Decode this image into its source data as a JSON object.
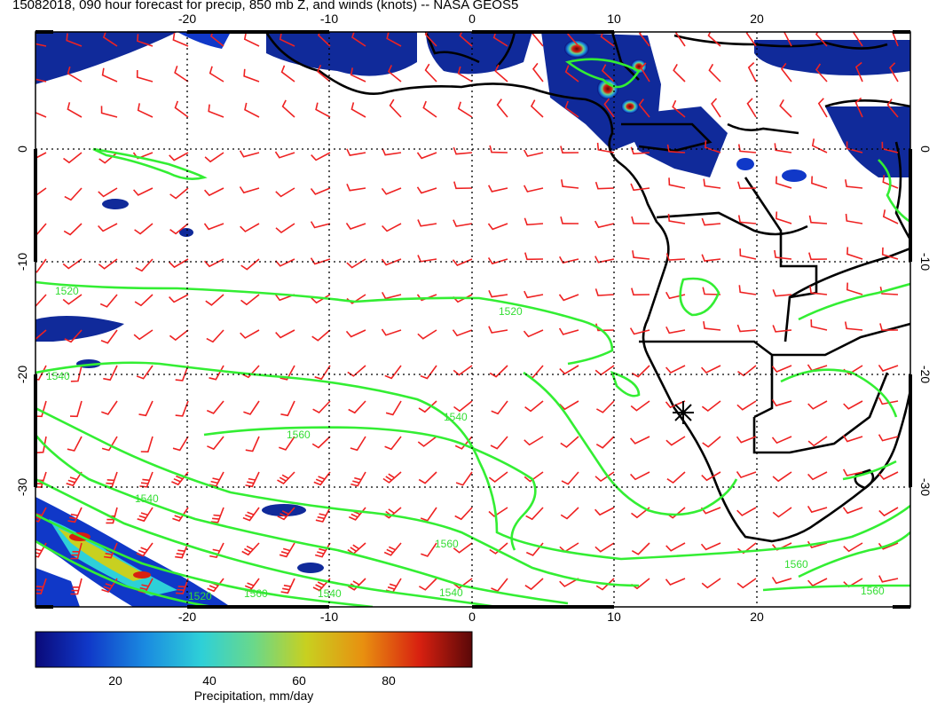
{
  "title": "15082018, 090 hour forecast for precip, 850 mb Z, and winds (knots) -- NASA GEOS5",
  "map": {
    "lon_ticks": [
      "-20",
      "-10",
      "0",
      "10",
      "20"
    ],
    "lat_ticks": [
      "0",
      "-10",
      "-20",
      "-30"
    ],
    "contour_labels": [
      "1520",
      "1520",
      "1540",
      "1540",
      "1560",
      "1540",
      "1560",
      "1560",
      "1560",
      "1560",
      "1540",
      "1520",
      "1540"
    ],
    "colors": {
      "contour": "#33ee33",
      "wind_barb": "#ee2222",
      "coastline": "#000000",
      "grid": "#000000"
    },
    "layers": [
      "precipitation-shading",
      "850mb-height-contours",
      "wind-barbs",
      "coastlines",
      "lat-lon-grid"
    ]
  },
  "colorbar": {
    "label": "Precipitation, mm/day",
    "ticks": [
      "20",
      "40",
      "60",
      "80"
    ],
    "range": [
      0,
      100
    ],
    "colors": [
      "#0a0a7a",
      "#1038c8",
      "#1a8ae0",
      "#2ed0d8",
      "#6ad88a",
      "#c8d020",
      "#e89010",
      "#d82010",
      "#5a0808"
    ]
  }
}
